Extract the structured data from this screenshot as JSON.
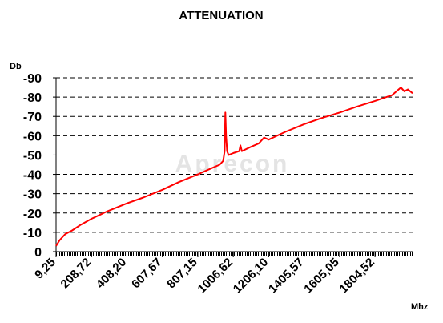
{
  "chart_data": {
    "type": "line",
    "title": "ATTENUATION",
    "y_label": "Db",
    "x_label": "Mhz",
    "watermark": "Aprecon",
    "x": [
      9.25,
      30,
      60,
      100,
      150,
      208.72,
      300,
      408.2,
      500,
      607.67,
      700,
      807.15,
      880,
      930,
      950,
      958,
      962,
      966,
      972,
      980,
      1006.62,
      1040,
      1047,
      1055,
      1100,
      1150,
      1180,
      1206.1,
      1300,
      1405.57,
      1500,
      1605.05,
      1700,
      1804.52,
      1900,
      1950,
      1970,
      1990,
      2016
    ],
    "series": [
      {
        "name": "Attenuation",
        "color": "#ff0000",
        "values": [
          -3,
          -6,
          -9,
          -11,
          -14,
          -17,
          -21,
          -25,
          -28,
          -32,
          -36,
          -40,
          -43,
          -45,
          -47,
          -52,
          -72,
          -60,
          -52,
          -50,
          -51,
          -52,
          -55,
          -52,
          -54,
          -56,
          -59,
          -58,
          -62,
          -66,
          -69,
          -72,
          -75,
          -78,
          -81,
          -85,
          -83,
          -84,
          -82
        ]
      }
    ],
    "xlim": [
      9.25,
      2016
    ],
    "xticks": [
      {
        "value": 9.25,
        "label": "9,25"
      },
      {
        "value": 208.72,
        "label": "208,72"
      },
      {
        "value": 408.2,
        "label": "408,20"
      },
      {
        "value": 607.67,
        "label": "607,67"
      },
      {
        "value": 807.15,
        "label": "807,15"
      },
      {
        "value": 1006.62,
        "label": "1006,62"
      },
      {
        "value": 1206.1,
        "label": "1206,10"
      },
      {
        "value": 1405.57,
        "label": "1405,57"
      },
      {
        "value": 1605.05,
        "label": "1605,05"
      },
      {
        "value": 1804.52,
        "label": "1804,52"
      }
    ],
    "ylim": [
      0,
      -90
    ],
    "yticks": [
      0,
      -10,
      -20,
      -30,
      -40,
      -50,
      -60,
      -70,
      -80,
      -90
    ],
    "grid": true
  }
}
